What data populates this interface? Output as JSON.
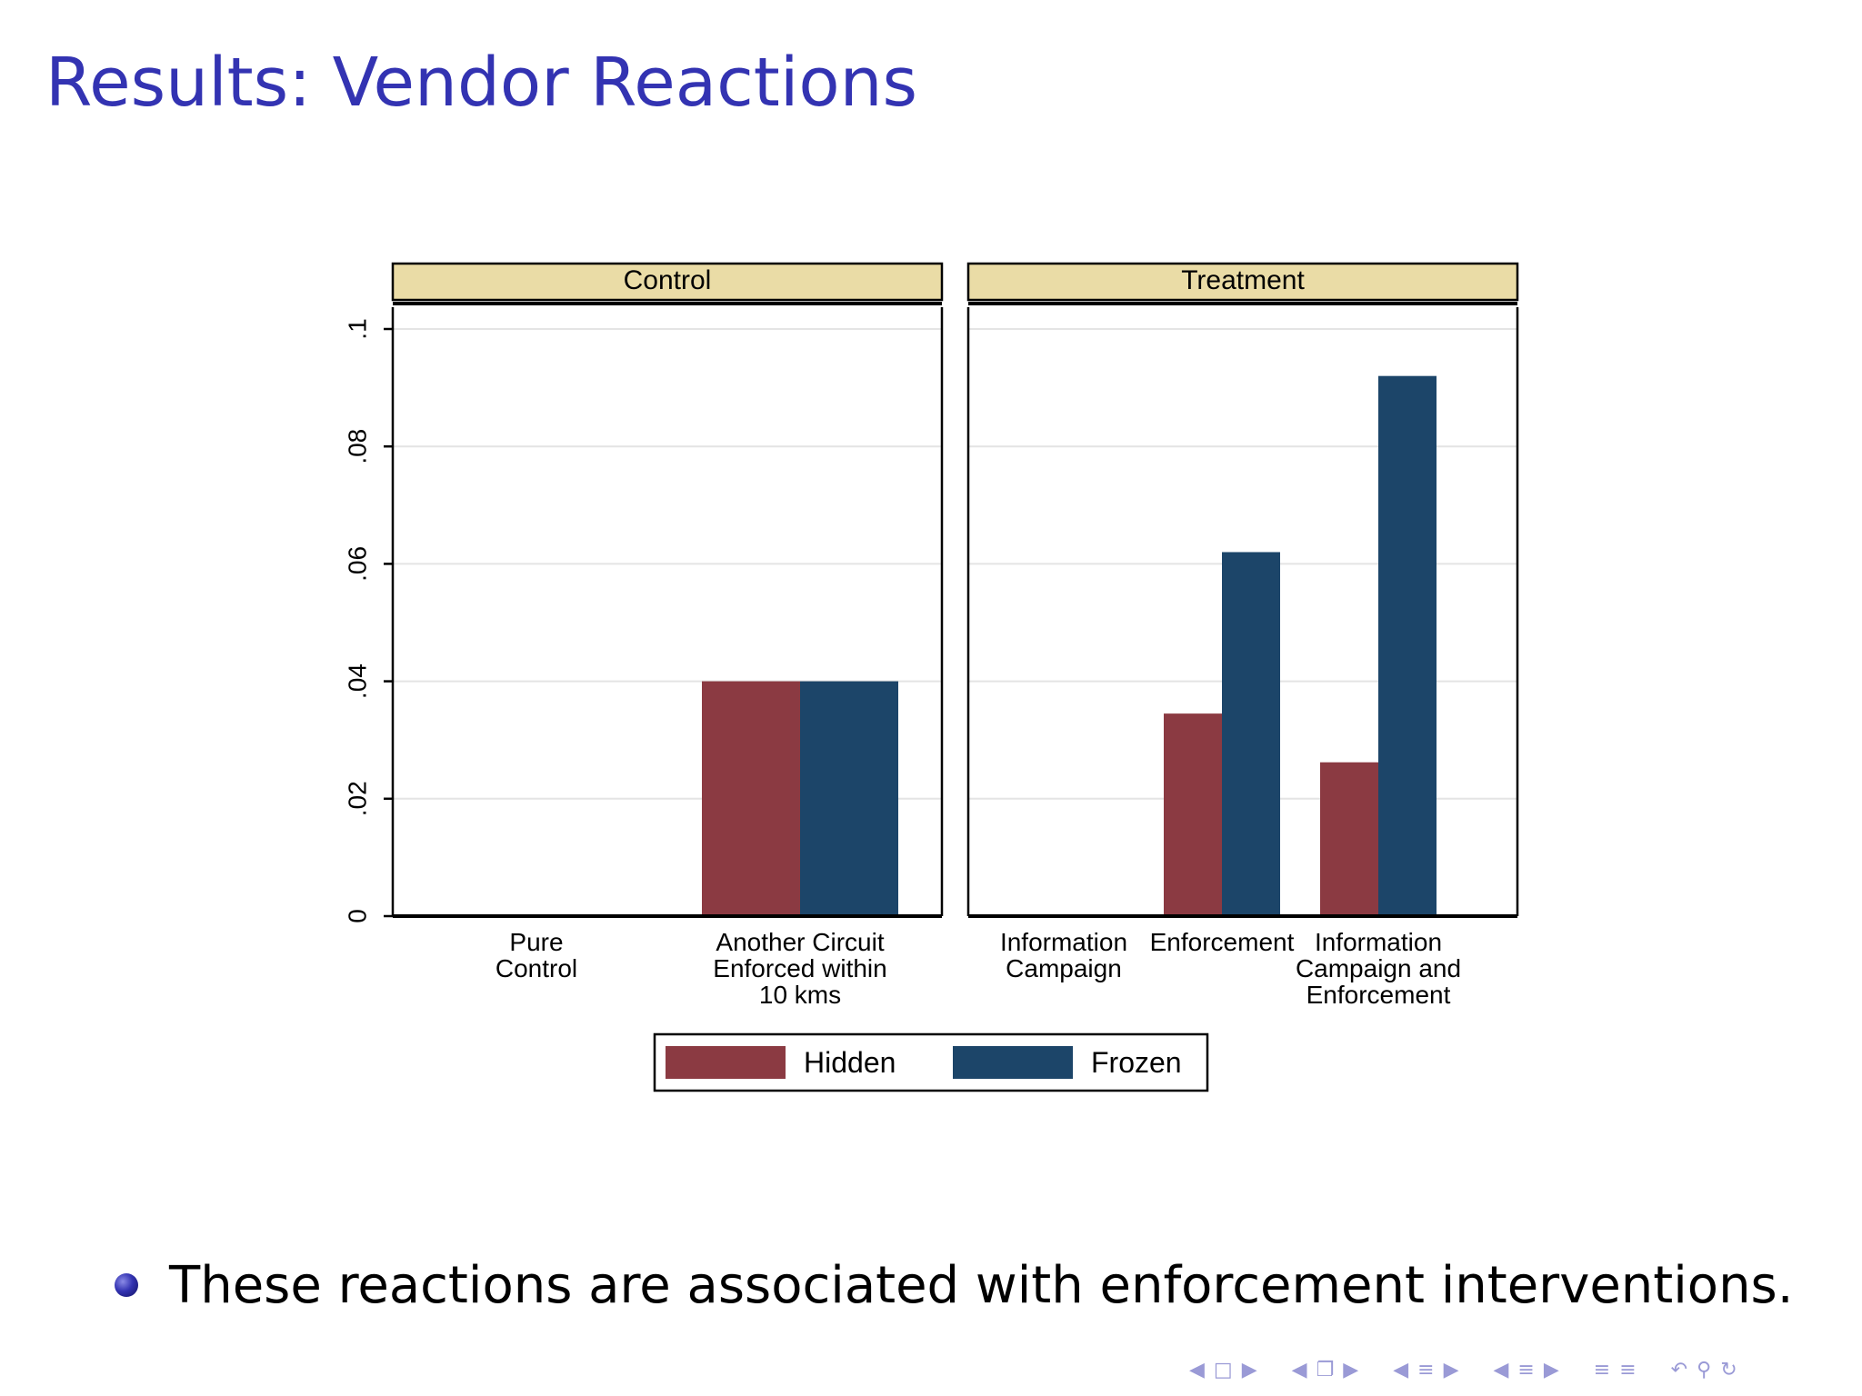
{
  "slide": {
    "title": "Results: Vendor Reactions",
    "bullet": "These reactions are associated with enforcement interventions."
  },
  "nav_icons": [
    "triangle-left",
    "frame",
    "triangle-right",
    "triangle-left",
    "section",
    "triangle-right",
    "triangle-left",
    "subsection-left",
    "triangle-right",
    "triangle-left",
    "subsection-right",
    "triangle-right",
    "align-icon",
    "align-icon",
    "undo-arrow",
    "zoom-search",
    "redo-arrow"
  ],
  "chart_data": {
    "type": "bar",
    "ylabel": "",
    "ylim": [
      0,
      0.105
    ],
    "yticks": [
      {
        "value": 0,
        "label": "0"
      },
      {
        "value": 0.02,
        "label": ".02"
      },
      {
        "value": 0.04,
        "label": ".04"
      },
      {
        "value": 0.06,
        "label": ".06"
      },
      {
        "value": 0.08,
        "label": ".08"
      },
      {
        "value": 0.1,
        "label": ".1"
      }
    ],
    "grid": true,
    "legend_position": "bottom-center",
    "series": [
      {
        "name": "Hidden",
        "color": "#8b3a42"
      },
      {
        "name": "Frozen",
        "color": "#1c4569"
      }
    ],
    "panels": [
      {
        "title": "Control",
        "groups": [
          {
            "label_lines": [
              "Pure",
              "Control"
            ],
            "values": [
              0,
              0
            ]
          },
          {
            "label_lines": [
              "Another Circuit",
              "Enforced within",
              "10 kms"
            ],
            "values": [
              0.04,
              0.04
            ]
          }
        ]
      },
      {
        "title": "Treatment",
        "groups": [
          {
            "label_lines": [
              "Information",
              "Campaign"
            ],
            "values": [
              0,
              0
            ]
          },
          {
            "label_lines": [
              "Enforcement"
            ],
            "values": [
              0.0345,
              0.062
            ]
          },
          {
            "label_lines": [
              "Information",
              "Campaign and",
              "Enforcement"
            ],
            "values": [
              0.0262,
              0.092
            ]
          }
        ]
      }
    ],
    "colors": {
      "strip_fill": "#eadca6",
      "grid": "#e4e4e4",
      "frame": "#000000"
    }
  }
}
